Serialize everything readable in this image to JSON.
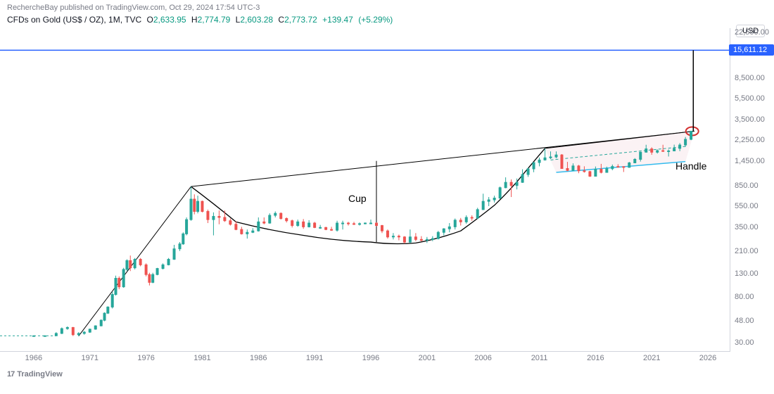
{
  "header": {
    "author": "RechercheBay",
    "published_text": "published on",
    "site": "TradingView.com",
    "timestamp": "Oct 29, 2024 17:54 UTC-3"
  },
  "ohlc": {
    "symbol_name": "CFDs on Gold (US$ / OZ)",
    "interval": "1M",
    "source": "TVC",
    "open": "2,633.95",
    "high": "2,774.79",
    "low": "2,603.28",
    "close": "2,773.72",
    "change_abs": "+139.47",
    "change_pct": "(+5.29%)",
    "value_color": "#089981"
  },
  "axes": {
    "currency": "USD",
    "y_scale": "log",
    "y_ticks": [
      {
        "label": "22,500.00",
        "value": 22500
      },
      {
        "label": "8,500.00",
        "value": 8500
      },
      {
        "label": "5,500.00",
        "value": 5500
      },
      {
        "label": "3,500.00",
        "value": 3500
      },
      {
        "label": "2,250.00",
        "value": 2250
      },
      {
        "label": "1,450.00",
        "value": 1450
      },
      {
        "label": "850.00",
        "value": 850
      },
      {
        "label": "550.00",
        "value": 550
      },
      {
        "label": "350.00",
        "value": 350
      },
      {
        "label": "210.00",
        "value": 210
      },
      {
        "label": "130.00",
        "value": 130
      },
      {
        "label": "80.00",
        "value": 80
      },
      {
        "label": "48.00",
        "value": 48
      },
      {
        "label": "30.00",
        "value": 30
      }
    ],
    "x_ticks": [
      1966,
      1971,
      1976,
      1981,
      1986,
      1991,
      1996,
      2001,
      2006,
      2011,
      2016,
      2021,
      2026
    ],
    "x_min": 1963,
    "x_max": 2028
  },
  "target": {
    "value": "15,611.12",
    "num": 15611.12,
    "color": "#2962ff"
  },
  "annotations": {
    "cup_label": "Cup",
    "handle_label": "Handle"
  },
  "style": {
    "candle_up_color": "#26a69a",
    "candle_down_color": "#ef5350",
    "candle_up_wick": "#26a69a",
    "candle_down_wick": "#ef5350",
    "trend_line_color": "#000000",
    "cup_curve_color": "#000000",
    "handle_channel_top": "#000000",
    "handle_channel_bottom": "#33bbee",
    "handle_mid_dash": "#26a69a",
    "handle_fill": "#f7e6ea",
    "target_line_color": "#2962ff",
    "projection_line_color": "#000000",
    "circle_color": "#d32f2f",
    "grid_color": "#d1d4dc",
    "text_color": "#787b86",
    "background": "#ffffff"
  },
  "footer": {
    "logo_mark": "17",
    "brand": "TradingView"
  },
  "series": {
    "type": "candlestick",
    "data": [
      {
        "t": 1966.0,
        "o": 35.1,
        "h": 35.3,
        "l": 35.0,
        "c": 35.2
      },
      {
        "t": 1967.0,
        "o": 35.2,
        "h": 35.4,
        "l": 35.0,
        "c": 35.2
      },
      {
        "t": 1968.0,
        "o": 35.2,
        "h": 38.0,
        "l": 35.0,
        "c": 37.0
      },
      {
        "t": 1968.5,
        "o": 37.0,
        "h": 42.0,
        "l": 36.5,
        "c": 41.0
      },
      {
        "t": 1969.0,
        "o": 41.0,
        "h": 43.0,
        "l": 40.0,
        "c": 42.0
      },
      {
        "t": 1969.5,
        "o": 42.0,
        "h": 42.5,
        "l": 35.0,
        "c": 36.0
      },
      {
        "t": 1970.0,
        "o": 36.0,
        "h": 38.0,
        "l": 34.8,
        "c": 37.0
      },
      {
        "t": 1970.5,
        "o": 37.0,
        "h": 39.0,
        "l": 36.0,
        "c": 38.0
      },
      {
        "t": 1971.0,
        "o": 38.0,
        "h": 41.0,
        "l": 37.5,
        "c": 40.5
      },
      {
        "t": 1971.5,
        "o": 40.5,
        "h": 44.0,
        "l": 40.0,
        "c": 43.5
      },
      {
        "t": 1972.0,
        "o": 43.5,
        "h": 50.0,
        "l": 43.0,
        "c": 49.0
      },
      {
        "t": 1972.3,
        "o": 49.0,
        "h": 58.0,
        "l": 48.0,
        "c": 57.0
      },
      {
        "t": 1972.6,
        "o": 57.0,
        "h": 66.0,
        "l": 56.0,
        "c": 65.0
      },
      {
        "t": 1973.0,
        "o": 65.0,
        "h": 90.0,
        "l": 63.0,
        "c": 85.0
      },
      {
        "t": 1973.3,
        "o": 85.0,
        "h": 127.0,
        "l": 83.0,
        "c": 120.0
      },
      {
        "t": 1973.6,
        "o": 120.0,
        "h": 125.0,
        "l": 95.0,
        "c": 100.0
      },
      {
        "t": 1974.0,
        "o": 100.0,
        "h": 150.0,
        "l": 98.0,
        "c": 145.0
      },
      {
        "t": 1974.3,
        "o": 145.0,
        "h": 180.0,
        "l": 140.0,
        "c": 175.0
      },
      {
        "t": 1974.6,
        "o": 175.0,
        "h": 195.0,
        "l": 140.0,
        "c": 150.0
      },
      {
        "t": 1975.0,
        "o": 150.0,
        "h": 185.0,
        "l": 145.0,
        "c": 180.0
      },
      {
        "t": 1975.5,
        "o": 180.0,
        "h": 185.0,
        "l": 155.0,
        "c": 160.0
      },
      {
        "t": 1976.0,
        "o": 160.0,
        "h": 165.0,
        "l": 125.0,
        "c": 130.0
      },
      {
        "t": 1976.3,
        "o": 130.0,
        "h": 135.0,
        "l": 103.0,
        "c": 110.0
      },
      {
        "t": 1976.6,
        "o": 110.0,
        "h": 135.0,
        "l": 108.0,
        "c": 130.0
      },
      {
        "t": 1977.0,
        "o": 130.0,
        "h": 150.0,
        "l": 128.0,
        "c": 148.0
      },
      {
        "t": 1977.5,
        "o": 148.0,
        "h": 165.0,
        "l": 145.0,
        "c": 160.0
      },
      {
        "t": 1978.0,
        "o": 160.0,
        "h": 185.0,
        "l": 158.0,
        "c": 180.0
      },
      {
        "t": 1978.5,
        "o": 180.0,
        "h": 245.0,
        "l": 178.0,
        "c": 225.0
      },
      {
        "t": 1979.0,
        "o": 225.0,
        "h": 260.0,
        "l": 215.0,
        "c": 250.0
      },
      {
        "t": 1979.3,
        "o": 250.0,
        "h": 320.0,
        "l": 245.0,
        "c": 310.0
      },
      {
        "t": 1979.6,
        "o": 310.0,
        "h": 440.0,
        "l": 300.0,
        "c": 420.0
      },
      {
        "t": 1980.0,
        "o": 420.0,
        "h": 850.0,
        "l": 410.0,
        "c": 650.0
      },
      {
        "t": 1980.3,
        "o": 650.0,
        "h": 720.0,
        "l": 470.0,
        "c": 500.0
      },
      {
        "t": 1980.6,
        "o": 500.0,
        "h": 700.0,
        "l": 480.0,
        "c": 620.0
      },
      {
        "t": 1981.0,
        "o": 620.0,
        "h": 630.0,
        "l": 490.0,
        "c": 500.0
      },
      {
        "t": 1981.5,
        "o": 500.0,
        "h": 520.0,
        "l": 390.0,
        "c": 420.0
      },
      {
        "t": 1982.0,
        "o": 420.0,
        "h": 490.0,
        "l": 300.0,
        "c": 450.0
      },
      {
        "t": 1982.5,
        "o": 450.0,
        "h": 510.0,
        "l": 380.0,
        "c": 440.0
      },
      {
        "t": 1983.0,
        "o": 440.0,
        "h": 510.0,
        "l": 400.0,
        "c": 410.0
      },
      {
        "t": 1983.5,
        "o": 410.0,
        "h": 430.0,
        "l": 370.0,
        "c": 380.0
      },
      {
        "t": 1984.0,
        "o": 380.0,
        "h": 405.0,
        "l": 335.0,
        "c": 340.0
      },
      {
        "t": 1984.5,
        "o": 340.0,
        "h": 360.0,
        "l": 305.0,
        "c": 310.0
      },
      {
        "t": 1985.0,
        "o": 310.0,
        "h": 340.0,
        "l": 280.0,
        "c": 320.0
      },
      {
        "t": 1985.5,
        "o": 320.0,
        "h": 350.0,
        "l": 315.0,
        "c": 330.0
      },
      {
        "t": 1986.0,
        "o": 330.0,
        "h": 440.0,
        "l": 325.0,
        "c": 400.0
      },
      {
        "t": 1986.5,
        "o": 400.0,
        "h": 440.0,
        "l": 380.0,
        "c": 390.0
      },
      {
        "t": 1987.0,
        "o": 390.0,
        "h": 480.0,
        "l": 385.0,
        "c": 460.0
      },
      {
        "t": 1987.5,
        "o": 460.0,
        "h": 500.0,
        "l": 440.0,
        "c": 480.0
      },
      {
        "t": 1988.0,
        "o": 480.0,
        "h": 490.0,
        "l": 420.0,
        "c": 430.0
      },
      {
        "t": 1988.5,
        "o": 430.0,
        "h": 440.0,
        "l": 395.0,
        "c": 410.0
      },
      {
        "t": 1989.0,
        "o": 410.0,
        "h": 420.0,
        "l": 355.0,
        "c": 370.0
      },
      {
        "t": 1989.5,
        "o": 370.0,
        "h": 420.0,
        "l": 360.0,
        "c": 400.0
      },
      {
        "t": 1990.0,
        "o": 400.0,
        "h": 425.0,
        "l": 345.0,
        "c": 360.0
      },
      {
        "t": 1990.5,
        "o": 360.0,
        "h": 415.0,
        "l": 355.0,
        "c": 390.0
      },
      {
        "t": 1991.0,
        "o": 390.0,
        "h": 400.0,
        "l": 350.0,
        "c": 355.0
      },
      {
        "t": 1991.5,
        "o": 355.0,
        "h": 375.0,
        "l": 345.0,
        "c": 355.0
      },
      {
        "t": 1992.0,
        "o": 355.0,
        "h": 360.0,
        "l": 335.0,
        "c": 340.0
      },
      {
        "t": 1992.5,
        "o": 340.0,
        "h": 360.0,
        "l": 330.0,
        "c": 335.0
      },
      {
        "t": 1993.0,
        "o": 335.0,
        "h": 410.0,
        "l": 325.0,
        "c": 390.0
      },
      {
        "t": 1993.5,
        "o": 390.0,
        "h": 410.0,
        "l": 340.0,
        "c": 390.0
      },
      {
        "t": 1994.0,
        "o": 390.0,
        "h": 400.0,
        "l": 370.0,
        "c": 385.0
      },
      {
        "t": 1994.5,
        "o": 385.0,
        "h": 400.0,
        "l": 375.0,
        "c": 380.0
      },
      {
        "t": 1995.0,
        "o": 380.0,
        "h": 395.0,
        "l": 370.0,
        "c": 385.0
      },
      {
        "t": 1995.5,
        "o": 385.0,
        "h": 395.0,
        "l": 380.0,
        "c": 390.0
      },
      {
        "t": 1996.0,
        "o": 390.0,
        "h": 420.0,
        "l": 385.0,
        "c": 390.0
      },
      {
        "t": 1996.5,
        "o": 390.0,
        "h": 395.0,
        "l": 365.0,
        "c": 370.0
      },
      {
        "t": 1997.0,
        "o": 370.0,
        "h": 375.0,
        "l": 315.0,
        "c": 330.0
      },
      {
        "t": 1997.5,
        "o": 330.0,
        "h": 340.0,
        "l": 280.0,
        "c": 290.0
      },
      {
        "t": 1998.0,
        "o": 290.0,
        "h": 315.0,
        "l": 275.0,
        "c": 295.0
      },
      {
        "t": 1998.5,
        "o": 295.0,
        "h": 305.0,
        "l": 270.0,
        "c": 290.0
      },
      {
        "t": 1999.0,
        "o": 290.0,
        "h": 295.0,
        "l": 252.0,
        "c": 260.0
      },
      {
        "t": 1999.5,
        "o": 260.0,
        "h": 340.0,
        "l": 255.0,
        "c": 290.0
      },
      {
        "t": 2000.0,
        "o": 290.0,
        "h": 315.0,
        "l": 265.0,
        "c": 275.0
      },
      {
        "t": 2000.5,
        "o": 275.0,
        "h": 295.0,
        "l": 263.0,
        "c": 270.0
      },
      {
        "t": 2001.0,
        "o": 270.0,
        "h": 290.0,
        "l": 255.0,
        "c": 275.0
      },
      {
        "t": 2001.5,
        "o": 275.0,
        "h": 295.0,
        "l": 265.0,
        "c": 280.0
      },
      {
        "t": 2002.0,
        "o": 280.0,
        "h": 330.0,
        "l": 275.0,
        "c": 320.0
      },
      {
        "t": 2002.5,
        "o": 320.0,
        "h": 350.0,
        "l": 300.0,
        "c": 345.0
      },
      {
        "t": 2003.0,
        "o": 345.0,
        "h": 390.0,
        "l": 320.0,
        "c": 360.0
      },
      {
        "t": 2003.5,
        "o": 360.0,
        "h": 430.0,
        "l": 340.0,
        "c": 415.0
      },
      {
        "t": 2004.0,
        "o": 415.0,
        "h": 435.0,
        "l": 370.0,
        "c": 400.0
      },
      {
        "t": 2004.5,
        "o": 400.0,
        "h": 460.0,
        "l": 385.0,
        "c": 440.0
      },
      {
        "t": 2005.0,
        "o": 440.0,
        "h": 460.0,
        "l": 410.0,
        "c": 435.0
      },
      {
        "t": 2005.5,
        "o": 435.0,
        "h": 540.0,
        "l": 425.0,
        "c": 520.0
      },
      {
        "t": 2006.0,
        "o": 520.0,
        "h": 730.0,
        "l": 515.0,
        "c": 620.0
      },
      {
        "t": 2006.5,
        "o": 620.0,
        "h": 680.0,
        "l": 560.0,
        "c": 640.0
      },
      {
        "t": 2007.0,
        "o": 640.0,
        "h": 700.0,
        "l": 605.0,
        "c": 665.0
      },
      {
        "t": 2007.5,
        "o": 665.0,
        "h": 850.0,
        "l": 650.0,
        "c": 830.0
      },
      {
        "t": 2008.0,
        "o": 830.0,
        "h": 1035.0,
        "l": 820.0,
        "c": 930.0
      },
      {
        "t": 2008.5,
        "o": 930.0,
        "h": 990.0,
        "l": 680.0,
        "c": 870.0
      },
      {
        "t": 2009.0,
        "o": 870.0,
        "h": 1010.0,
        "l": 800.0,
        "c": 930.0
      },
      {
        "t": 2009.5,
        "o": 930.0,
        "h": 1230.0,
        "l": 920.0,
        "c": 1100.0
      },
      {
        "t": 2010.0,
        "o": 1100.0,
        "h": 1270.0,
        "l": 1045.0,
        "c": 1240.0
      },
      {
        "t": 2010.5,
        "o": 1240.0,
        "h": 1430.0,
        "l": 1155.0,
        "c": 1420.0
      },
      {
        "t": 2011.0,
        "o": 1420.0,
        "h": 1580.0,
        "l": 1310.0,
        "c": 1500.0
      },
      {
        "t": 2011.5,
        "o": 1500.0,
        "h": 1920.0,
        "l": 1480.0,
        "c": 1570.0
      },
      {
        "t": 2012.0,
        "o": 1570.0,
        "h": 1800.0,
        "l": 1530.0,
        "c": 1600.0
      },
      {
        "t": 2012.5,
        "o": 1600.0,
        "h": 1800.0,
        "l": 1555.0,
        "c": 1670.0
      },
      {
        "t": 2013.0,
        "o": 1670.0,
        "h": 1700.0,
        "l": 1320.0,
        "c": 1250.0
      },
      {
        "t": 2013.5,
        "o": 1250.0,
        "h": 1440.0,
        "l": 1180.0,
        "c": 1200.0
      },
      {
        "t": 2014.0,
        "o": 1200.0,
        "h": 1395.0,
        "l": 1185.0,
        "c": 1320.0
      },
      {
        "t": 2014.5,
        "o": 1320.0,
        "h": 1350.0,
        "l": 1130.0,
        "c": 1190.0
      },
      {
        "t": 2015.0,
        "o": 1190.0,
        "h": 1310.0,
        "l": 1145.0,
        "c": 1170.0
      },
      {
        "t": 2015.5,
        "o": 1170.0,
        "h": 1190.0,
        "l": 1045.0,
        "c": 1060.0
      },
      {
        "t": 2016.0,
        "o": 1060.0,
        "h": 1305.0,
        "l": 1055.0,
        "c": 1230.0
      },
      {
        "t": 2016.5,
        "o": 1230.0,
        "h": 1380.0,
        "l": 1125.0,
        "c": 1150.0
      },
      {
        "t": 2017.0,
        "o": 1150.0,
        "h": 1300.0,
        "l": 1145.0,
        "c": 1245.0
      },
      {
        "t": 2017.5,
        "o": 1245.0,
        "h": 1360.0,
        "l": 1205.0,
        "c": 1305.0
      },
      {
        "t": 2018.0,
        "o": 1305.0,
        "h": 1370.0,
        "l": 1280.0,
        "c": 1300.0
      },
      {
        "t": 2018.5,
        "o": 1300.0,
        "h": 1310.0,
        "l": 1160.0,
        "c": 1280.0
      },
      {
        "t": 2019.0,
        "o": 1280.0,
        "h": 1440.0,
        "l": 1270.0,
        "c": 1410.0
      },
      {
        "t": 2019.5,
        "o": 1410.0,
        "h": 1560.0,
        "l": 1400.0,
        "c": 1520.0
      },
      {
        "t": 2020.0,
        "o": 1520.0,
        "h": 1790.0,
        "l": 1450.0,
        "c": 1770.0
      },
      {
        "t": 2020.5,
        "o": 1770.0,
        "h": 2075.0,
        "l": 1760.0,
        "c": 1900.0
      },
      {
        "t": 2021.0,
        "o": 1900.0,
        "h": 1965.0,
        "l": 1675.0,
        "c": 1770.0
      },
      {
        "t": 2021.5,
        "o": 1770.0,
        "h": 1880.0,
        "l": 1720.0,
        "c": 1830.0
      },
      {
        "t": 2022.0,
        "o": 1830.0,
        "h": 2075.0,
        "l": 1780.0,
        "c": 1820.0
      },
      {
        "t": 2022.5,
        "o": 1820.0,
        "h": 1880.0,
        "l": 1615.0,
        "c": 1820.0
      },
      {
        "t": 2023.0,
        "o": 1820.0,
        "h": 2080.0,
        "l": 1805.0,
        "c": 1920.0
      },
      {
        "t": 2023.5,
        "o": 1920.0,
        "h": 2150.0,
        "l": 1810.0,
        "c": 2065.0
      },
      {
        "t": 2024.0,
        "o": 2065.0,
        "h": 2450.0,
        "l": 1985.0,
        "c": 2330.0
      },
      {
        "t": 2024.5,
        "o": 2330.0,
        "h": 2790.0,
        "l": 2290.0,
        "c": 2773.0
      }
    ]
  }
}
